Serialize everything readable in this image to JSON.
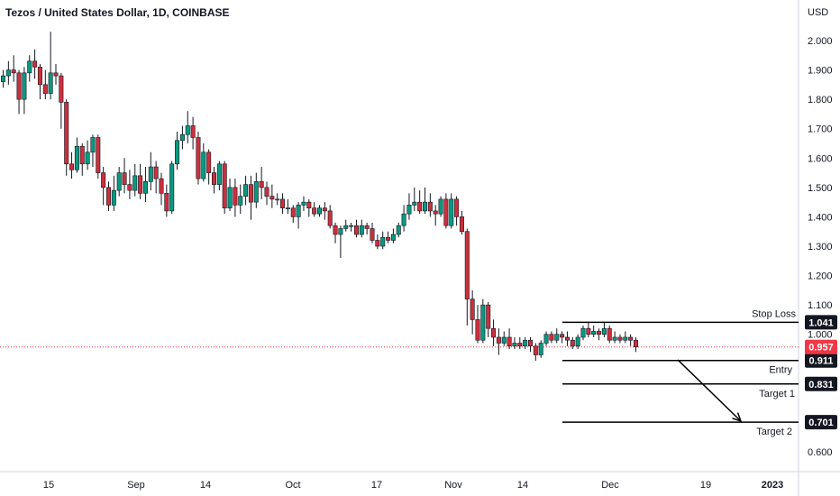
{
  "header": {
    "title": "Tezos / United States Dollar, 1D, COINBASE"
  },
  "colors": {
    "up": "#089981",
    "down": "#cc2f3c",
    "wick": "#131722",
    "level_line": "#000000",
    "last_price_line": "#f23645",
    "axis_border": "#d1d4dc"
  },
  "chart_data": {
    "type": "candlestick",
    "title": "Tezos / United States Dollar, 1D, COINBASE",
    "currency_label": "USD",
    "y_ticks": [
      "2.000",
      "1.900",
      "1.800",
      "1.700",
      "1.600",
      "1.500",
      "1.400",
      "1.300",
      "1.200",
      "1.100",
      "1.000",
      "0.600"
    ],
    "x_ticks": [
      "15",
      "Sep",
      "14",
      "Oct",
      "17",
      "Nov",
      "14",
      "Dec",
      "19",
      "2023"
    ],
    "ylim": [
      0.55,
      2.07
    ],
    "last_price": "0.957",
    "levels": [
      {
        "name": "Stop Loss",
        "value": "1.041"
      },
      {
        "name": "Entry",
        "value": "0.911"
      },
      {
        "name": "Target 1",
        "value": "0.831"
      },
      {
        "name": "Target 2",
        "value": "0.701"
      }
    ],
    "candles": [
      [
        1.86,
        1.88,
        1.9,
        1.84
      ],
      [
        1.88,
        1.9,
        1.93,
        1.85
      ],
      [
        1.9,
        1.89,
        1.95,
        1.86
      ],
      [
        1.89,
        1.8,
        1.9,
        1.75
      ],
      [
        1.8,
        1.89,
        1.91,
        1.75
      ],
      [
        1.89,
        1.93,
        1.95,
        1.86
      ],
      [
        1.93,
        1.91,
        1.97,
        1.87
      ],
      [
        1.91,
        1.85,
        1.92,
        1.8
      ],
      [
        1.85,
        1.82,
        1.9,
        1.8
      ],
      [
        1.82,
        1.89,
        2.03,
        1.8
      ],
      [
        1.89,
        1.88,
        1.92,
        1.85
      ],
      [
        1.88,
        1.79,
        1.89,
        1.7
      ],
      [
        1.79,
        1.58,
        1.8,
        1.54
      ],
      [
        1.58,
        1.56,
        1.62,
        1.53
      ],
      [
        1.56,
        1.64,
        1.67,
        1.55
      ],
      [
        1.64,
        1.58,
        1.65,
        1.54
      ],
      [
        1.58,
        1.62,
        1.66,
        1.56
      ],
      [
        1.62,
        1.67,
        1.68,
        1.57
      ],
      [
        1.67,
        1.55,
        1.68,
        1.53
      ],
      [
        1.55,
        1.5,
        1.57,
        1.44
      ],
      [
        1.5,
        1.44,
        1.52,
        1.42
      ],
      [
        1.44,
        1.49,
        1.54,
        1.42
      ],
      [
        1.49,
        1.55,
        1.57,
        1.47
      ],
      [
        1.55,
        1.51,
        1.6,
        1.48
      ],
      [
        1.51,
        1.49,
        1.56,
        1.46
      ],
      [
        1.49,
        1.54,
        1.58,
        1.47
      ],
      [
        1.54,
        1.48,
        1.58,
        1.46
      ],
      [
        1.48,
        1.52,
        1.57,
        1.45
      ],
      [
        1.52,
        1.57,
        1.62,
        1.49
      ],
      [
        1.57,
        1.53,
        1.59,
        1.48
      ],
      [
        1.53,
        1.48,
        1.55,
        1.44
      ],
      [
        1.48,
        1.42,
        1.51,
        1.4
      ],
      [
        1.42,
        1.58,
        1.59,
        1.41
      ],
      [
        1.58,
        1.66,
        1.69,
        1.56
      ],
      [
        1.66,
        1.68,
        1.71,
        1.63
      ],
      [
        1.68,
        1.71,
        1.76,
        1.65
      ],
      [
        1.71,
        1.67,
        1.74,
        1.63
      ],
      [
        1.67,
        1.53,
        1.69,
        1.51
      ],
      [
        1.53,
        1.62,
        1.65,
        1.52
      ],
      [
        1.62,
        1.55,
        1.63,
        1.51
      ],
      [
        1.55,
        1.51,
        1.57,
        1.48
      ],
      [
        1.51,
        1.58,
        1.59,
        1.49
      ],
      [
        1.58,
        1.43,
        1.59,
        1.41
      ],
      [
        1.43,
        1.5,
        1.53,
        1.42
      ],
      [
        1.5,
        1.44,
        1.53,
        1.4
      ],
      [
        1.44,
        1.47,
        1.51,
        1.41
      ],
      [
        1.47,
        1.51,
        1.54,
        1.44
      ],
      [
        1.51,
        1.45,
        1.54,
        1.39
      ],
      [
        1.45,
        1.52,
        1.55,
        1.43
      ],
      [
        1.52,
        1.5,
        1.57,
        1.46
      ],
      [
        1.5,
        1.47,
        1.52,
        1.44
      ],
      [
        1.47,
        1.46,
        1.51,
        1.43
      ],
      [
        1.46,
        1.46,
        1.48,
        1.44
      ],
      [
        1.46,
        1.43,
        1.48,
        1.41
      ],
      [
        1.43,
        1.43,
        1.46,
        1.41
      ],
      [
        1.43,
        1.4,
        1.44,
        1.38
      ],
      [
        1.4,
        1.44,
        1.45,
        1.36
      ],
      [
        1.44,
        1.45,
        1.47,
        1.42
      ],
      [
        1.45,
        1.43,
        1.46,
        1.4
      ],
      [
        1.43,
        1.41,
        1.45,
        1.4
      ],
      [
        1.41,
        1.43,
        1.44,
        1.4
      ],
      [
        1.43,
        1.42,
        1.45,
        1.39
      ],
      [
        1.42,
        1.37,
        1.44,
        1.36
      ],
      [
        1.37,
        1.34,
        1.38,
        1.31
      ],
      [
        1.34,
        1.36,
        1.37,
        1.26
      ],
      [
        1.36,
        1.37,
        1.39,
        1.35
      ],
      [
        1.37,
        1.37,
        1.38,
        1.35
      ],
      [
        1.37,
        1.34,
        1.39,
        1.33
      ],
      [
        1.34,
        1.37,
        1.39,
        1.33
      ],
      [
        1.37,
        1.36,
        1.38,
        1.34
      ],
      [
        1.36,
        1.32,
        1.38,
        1.31
      ],
      [
        1.32,
        1.3,
        1.34,
        1.29
      ],
      [
        1.3,
        1.33,
        1.35,
        1.29
      ],
      [
        1.33,
        1.32,
        1.35,
        1.31
      ],
      [
        1.32,
        1.34,
        1.36,
        1.31
      ],
      [
        1.34,
        1.37,
        1.38,
        1.33
      ],
      [
        1.37,
        1.41,
        1.44,
        1.35
      ],
      [
        1.41,
        1.44,
        1.48,
        1.39
      ],
      [
        1.44,
        1.45,
        1.5,
        1.42
      ],
      [
        1.45,
        1.42,
        1.49,
        1.41
      ],
      [
        1.42,
        1.45,
        1.5,
        1.41
      ],
      [
        1.45,
        1.42,
        1.48,
        1.4
      ],
      [
        1.42,
        1.41,
        1.44,
        1.37
      ],
      [
        1.41,
        1.46,
        1.47,
        1.4
      ],
      [
        1.46,
        1.37,
        1.48,
        1.36
      ],
      [
        1.37,
        1.46,
        1.48,
        1.36
      ],
      [
        1.46,
        1.4,
        1.47,
        1.37
      ],
      [
        1.4,
        1.35,
        1.42,
        1.34
      ],
      [
        1.35,
        1.12,
        1.36,
        1.03
      ],
      [
        1.12,
        1.05,
        1.15,
        1.0
      ],
      [
        1.05,
        0.98,
        1.1,
        0.97
      ],
      [
        0.98,
        1.1,
        1.12,
        0.97
      ],
      [
        1.1,
        1.02,
        1.11,
        0.99
      ],
      [
        1.02,
        0.99,
        1.05,
        0.96
      ],
      [
        0.99,
        0.97,
        1.02,
        0.93
      ],
      [
        0.97,
        0.99,
        1.01,
        0.96
      ],
      [
        0.99,
        0.96,
        1.02,
        0.95
      ],
      [
        0.96,
        0.97,
        0.99,
        0.95
      ],
      [
        0.97,
        0.96,
        0.99,
        0.95
      ],
      [
        0.96,
        0.98,
        0.99,
        0.95
      ],
      [
        0.98,
        0.96,
        0.99,
        0.94
      ],
      [
        0.96,
        0.93,
        0.97,
        0.91
      ],
      [
        0.93,
        0.97,
        0.98,
        0.92
      ],
      [
        0.97,
        1.0,
        1.01,
        0.96
      ],
      [
        1.0,
        0.98,
        1.01,
        0.97
      ],
      [
        0.98,
        1.0,
        1.02,
        0.97
      ],
      [
        1.0,
        0.99,
        1.01,
        0.97
      ],
      [
        0.99,
        0.98,
        1.01,
        0.96
      ],
      [
        0.98,
        0.96,
        0.99,
        0.95
      ],
      [
        0.96,
        0.99,
        1.0,
        0.95
      ],
      [
        0.99,
        1.02,
        1.03,
        0.98
      ],
      [
        1.02,
        1.0,
        1.04,
        0.99
      ],
      [
        1.0,
        1.01,
        1.03,
        0.99
      ],
      [
        1.01,
        1.0,
        1.02,
        0.98
      ],
      [
        1.0,
        1.02,
        1.04,
        0.99
      ],
      [
        1.02,
        0.98,
        1.03,
        0.97
      ],
      [
        0.98,
        0.99,
        1.01,
        0.97
      ],
      [
        0.99,
        0.98,
        1.0,
        0.97
      ],
      [
        0.98,
        0.99,
        1.01,
        0.97
      ],
      [
        0.99,
        0.98,
        1.0,
        0.96
      ],
      [
        0.98,
        0.957,
        0.99,
        0.94
      ]
    ]
  }
}
